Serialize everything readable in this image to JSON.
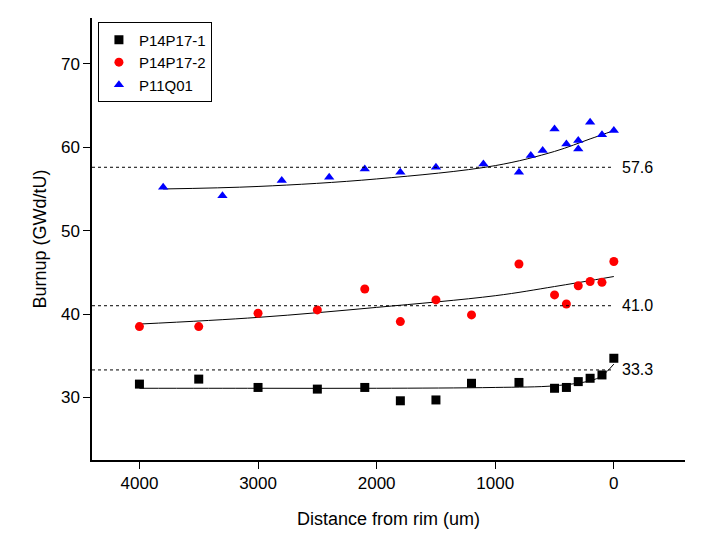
{
  "chart_data": {
    "type": "scatter",
    "x_label": "Distance from rim (um)",
    "y_label": "Burnup (GWd/tU)",
    "xlim": [
      4400,
      -600
    ],
    "xticks": [
      4000,
      3000,
      2000,
      1000,
      0
    ],
    "ylim": [
      22.5,
      75.5
    ],
    "yticks": [
      30,
      40,
      50,
      60,
      70
    ],
    "grid": false,
    "legend": "upper left",
    "series": [
      {
        "name": "P14P17-1",
        "color": "#000000",
        "marker": "square",
        "x": [
          4000,
          3500,
          3000,
          2500,
          2100,
          1800,
          1500,
          1200,
          800,
          500,
          400,
          300,
          200,
          100,
          0
        ],
        "values": [
          31.6,
          32.2,
          31.2,
          31.0,
          31.2,
          29.6,
          29.7,
          31.7,
          31.8,
          31.1,
          31.2,
          31.9,
          32.3,
          32.7,
          34.7
        ],
        "fit": {
          "x": [
            4000,
            3000,
            2000,
            1000,
            500,
            200,
            100,
            0
          ],
          "values": [
            31.1,
            31.1,
            31.1,
            31.2,
            31.4,
            32.0,
            32.6,
            34.0
          ]
        }
      },
      {
        "name": "P14P17-2",
        "color": "#ff0000",
        "marker": "circle",
        "x": [
          4000,
          3500,
          3000,
          2500,
          2100,
          1800,
          1500,
          1200,
          800,
          500,
          400,
          300,
          200,
          100,
          0
        ],
        "values": [
          38.5,
          38.5,
          40.1,
          40.5,
          43.0,
          39.1,
          41.7,
          39.9,
          46.0,
          42.3,
          41.2,
          43.4,
          43.9,
          43.8,
          46.3
        ],
        "fit": {
          "x": [
            4000,
            3000,
            2000,
            1000,
            500,
            0
          ],
          "values": [
            38.8,
            39.6,
            40.8,
            42.2,
            43.3,
            44.5
          ]
        }
      },
      {
        "name": "P11Q01",
        "color": "#0000ff",
        "marker": "triangle-up",
        "x": [
          3800,
          3300,
          2800,
          2400,
          2100,
          1800,
          1500,
          1100,
          800,
          700,
          600,
          500,
          400,
          300,
          300,
          200,
          100,
          0
        ],
        "values": [
          55.2,
          54.2,
          56.0,
          56.4,
          57.4,
          57.0,
          57.6,
          58.0,
          57.0,
          59.0,
          59.6,
          62.2,
          60.4,
          60.8,
          59.8,
          63.0,
          61.5,
          62.0
        ],
        "fit": {
          "x": [
            3800,
            3000,
            2000,
            1000,
            500,
            200,
            0
          ],
          "values": [
            55.0,
            55.3,
            56.2,
            57.8,
            59.5,
            61.0,
            62.0
          ]
        }
      }
    ],
    "reference_lines": [
      {
        "value": 57.6,
        "label": "57.6",
        "x_end": 0,
        "line_style": "dash"
      },
      {
        "value": 41.0,
        "label": "41.0",
        "x_end": 0,
        "line_style": "dash"
      },
      {
        "value": 33.3,
        "label": "33.3",
        "x_end": 0,
        "line_style": "dash"
      }
    ]
  }
}
